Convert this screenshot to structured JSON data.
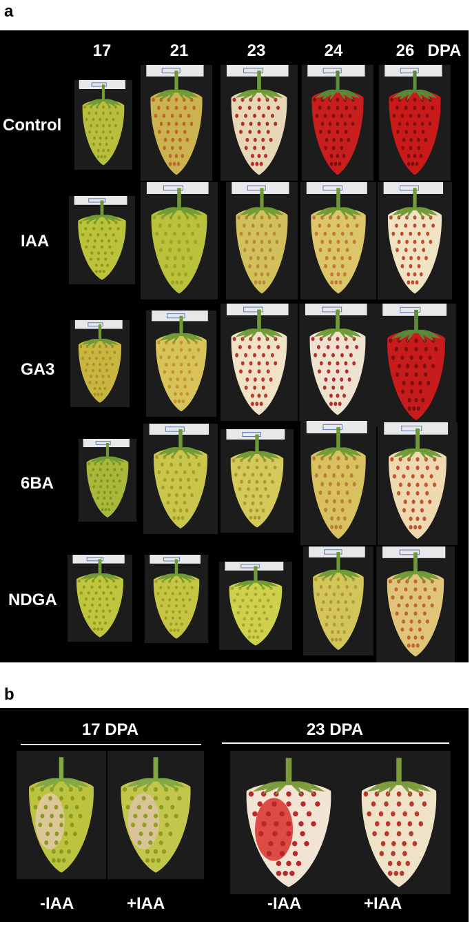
{
  "panel_a": {
    "letter": "a",
    "columns": [
      "17",
      "21",
      "23",
      "24",
      "26"
    ],
    "unit": "DPA",
    "rows": [
      {
        "label": "Control",
        "fruits": [
          {
            "dpa": "17",
            "skin": "#b9bf3d",
            "seed": "#8a9a22",
            "cap": "#6f9a35"
          },
          {
            "dpa": "21",
            "skin": "#cbb350",
            "seed": "#c0652a",
            "cap": "#6f9a35"
          },
          {
            "dpa": "23",
            "skin": "#e6d7b7",
            "seed": "#b42d28",
            "cap": "#6f9a35"
          },
          {
            "dpa": "24",
            "skin": "#c81e1e",
            "seed": "#7a1010",
            "cap": "#5a8a3a"
          },
          {
            "dpa": "26",
            "skin": "#c91a1a",
            "seed": "#7a0f0f",
            "cap": "#5a8a3a"
          }
        ]
      },
      {
        "label": "IAA",
        "fruits": [
          {
            "dpa": "17",
            "skin": "#bcc33a",
            "seed": "#8b9b20",
            "cap": "#6f9a35"
          },
          {
            "dpa": "21",
            "skin": "#b9c23a",
            "seed": "#9aa52a",
            "cap": "#6f9a35"
          },
          {
            "dpa": "23",
            "skin": "#d2c05a",
            "seed": "#b68a3a",
            "cap": "#6f9a35"
          },
          {
            "dpa": "24",
            "skin": "#dcc66a",
            "seed": "#c37a3a",
            "cap": "#6f9a35"
          },
          {
            "dpa": "26",
            "skin": "#efe3c3",
            "seed": "#c14a2c",
            "cap": "#6f9a35"
          }
        ]
      },
      {
        "label": "GA3",
        "fruits": [
          {
            "dpa": "17",
            "skin": "#c8b640",
            "seed": "#a8902a",
            "cap": "#6f9a35"
          },
          {
            "dpa": "21",
            "skin": "#d8c35a",
            "seed": "#c4942f",
            "cap": "#6f9a35"
          },
          {
            "dpa": "23",
            "skin": "#efe2c6",
            "seed": "#b8362b",
            "cap": "#6f9a35"
          },
          {
            "dpa": "24",
            "skin": "#efe2cf",
            "seed": "#b22f2b",
            "cap": "#6f9a35"
          },
          {
            "dpa": "26",
            "skin": "#c81b1b",
            "seed": "#7a1010",
            "cap": "#5a8a3a"
          }
        ]
      },
      {
        "label": "6BA",
        "fruits": [
          {
            "dpa": "17",
            "skin": "#a9b83b",
            "seed": "#7f9521",
            "cap": "#6f9a35"
          },
          {
            "dpa": "21",
            "skin": "#c9c64b",
            "seed": "#a0a02a",
            "cap": "#6f9a35"
          },
          {
            "dpa": "23",
            "skin": "#d4c95a",
            "seed": "#aa9a2f",
            "cap": "#6f9a35"
          },
          {
            "dpa": "24",
            "skin": "#d9c160",
            "seed": "#b8823a",
            "cap": "#6f9a35"
          },
          {
            "dpa": "26",
            "skin": "#efd9b0",
            "seed": "#c0552f",
            "cap": "#6f9a35"
          }
        ]
      },
      {
        "label": "NDGA",
        "fruits": [
          {
            "dpa": "17",
            "skin": "#bfc53d",
            "seed": "#8e9c22",
            "cap": "#6f9a35"
          },
          {
            "dpa": "21",
            "skin": "#c6c443",
            "seed": "#98a027",
            "cap": "#6f9a35"
          },
          {
            "dpa": "23",
            "skin": "#cfd04b",
            "seed": "#a4a82c",
            "cap": "#6f9a35"
          },
          {
            "dpa": "24",
            "skin": "#d2c65a",
            "seed": "#b4983a",
            "cap": "#6f9a35"
          },
          {
            "dpa": "26",
            "skin": "#e0c47a",
            "seed": "#c0662f",
            "cap": "#6f9a35"
          }
        ]
      }
    ]
  },
  "panel_b": {
    "letter": "b",
    "groups": [
      {
        "title": "17 DPA",
        "labels": [
          "-IAA",
          "+IAA"
        ],
        "fruits": [
          {
            "skin": "#bcc33f",
            "seed": "#8c9a22",
            "patch": "#e3c8a8",
            "cap": "#7fa843"
          },
          {
            "skin": "#c2c64a",
            "seed": "#909d25",
            "patch": "#ddc3a8",
            "cap": "#7fa843"
          }
        ]
      },
      {
        "title": "23 DPA",
        "labels": [
          "-IAA",
          "+IAA"
        ],
        "fruits": [
          {
            "skin": "#f1e4d2",
            "seed": "#b8282b",
            "patch": "#d9302d",
            "cap": "#7a9a3a"
          },
          {
            "skin": "#eee3c7",
            "seed": "#b83a2c",
            "patch": "#eee3c7",
            "cap": "#7a9a3a"
          }
        ]
      }
    ]
  }
}
